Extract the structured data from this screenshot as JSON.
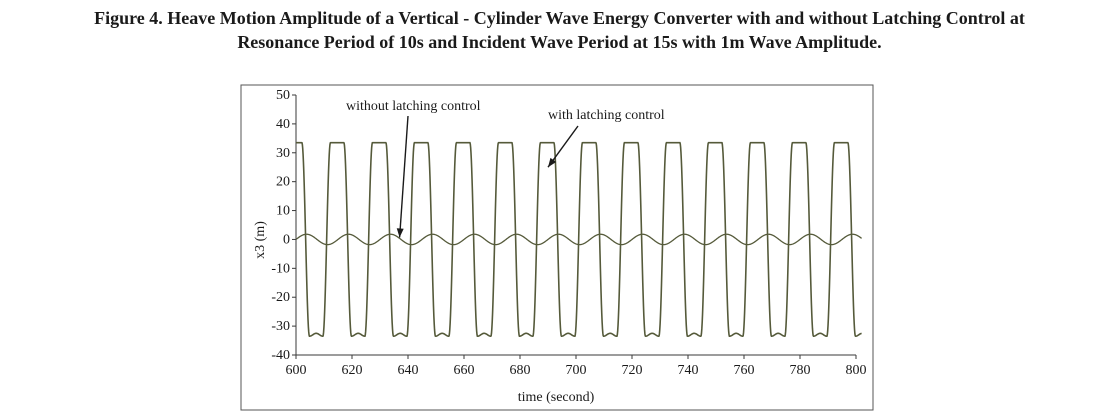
{
  "figure": {
    "caption_line1": "Figure 4. Heave Motion Amplitude of  a Vertical - Cylinder Wave Energy Converter with and without Latching Control at",
    "caption_line2": "Resonance Period of 10s and Incident Wave Period at 15s with 1m Wave Amplitude."
  },
  "chart_data": {
    "type": "line",
    "title": "",
    "xlabel": "time (second)",
    "ylabel": "x3 (m)",
    "xlim": [
      600,
      800
    ],
    "ylim": [
      -40,
      50
    ],
    "x_ticks": [
      600,
      620,
      640,
      660,
      680,
      700,
      720,
      740,
      760,
      780,
      800
    ],
    "y_ticks": [
      50,
      40,
      30,
      20,
      10,
      0,
      -10,
      -20,
      -30,
      -40
    ],
    "grid": false,
    "line_color": "#555a3a",
    "series": [
      {
        "name": "with latching control",
        "period": 15,
        "amplitude": 33.5,
        "x_range": [
          600,
          802
        ],
        "shape": "latched (flat dwell at extrema)"
      },
      {
        "name": "without latching control",
        "period": 15,
        "amplitude": 1.8,
        "x_range": [
          600,
          802
        ],
        "shape": "sinusoid"
      }
    ],
    "annotations": [
      {
        "text": "without latching control",
        "points_to": [
          637,
          0
        ]
      },
      {
        "text": "with latching control",
        "points_to": [
          690,
          25
        ]
      }
    ]
  }
}
